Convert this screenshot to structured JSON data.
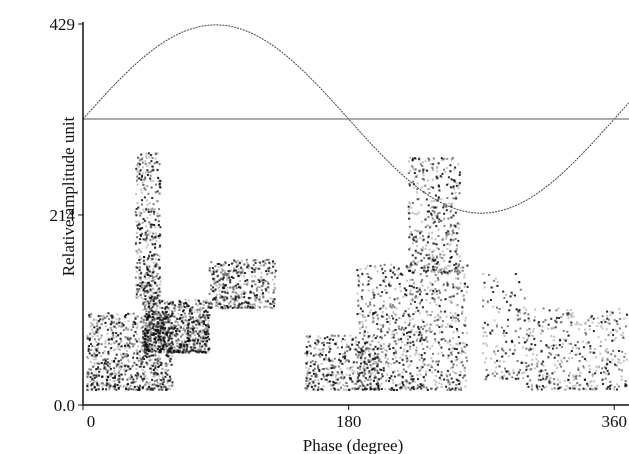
{
  "chart_data": {
    "type": "scatter",
    "title": "",
    "xlabel": "Phase (degree)",
    "ylabel": "Relative amplitude unit",
    "xlim": [
      0,
      370
    ],
    "ylim": [
      0,
      429
    ],
    "x_ticks": [
      {
        "value": 0,
        "label": "0"
      },
      {
        "value": 180,
        "label": "180"
      },
      {
        "value": 360,
        "label": "360"
      }
    ],
    "y_ticks": [
      {
        "value": 0,
        "label": "0.0"
      },
      {
        "value": 214,
        "label": "214"
      },
      {
        "value": 429,
        "label": "429"
      }
    ],
    "grid": false,
    "reference_sine": {
      "offset": 322,
      "amplitude": 106,
      "phase_range": [
        0,
        370
      ]
    },
    "threshold_line": 322,
    "pd_clusters": [
      {
        "phase_range": [
          2,
          60
        ],
        "amp_range": [
          18,
          105
        ],
        "density": "high"
      },
      {
        "phase_range": [
          35,
          52
        ],
        "amp_range": [
          120,
          285
        ],
        "density": "medium"
      },
      {
        "phase_range": [
          40,
          85
        ],
        "amp_range": [
          60,
          120
        ],
        "density": "high"
      },
      {
        "phase_range": [
          85,
          130
        ],
        "amp_range": [
          110,
          165
        ],
        "density": "medium"
      },
      {
        "phase_range": [
          150,
          200
        ],
        "amp_range": [
          18,
          80
        ],
        "density": "medium"
      },
      {
        "phase_range": [
          185,
          260
        ],
        "amp_range": [
          18,
          160
        ],
        "density": "high"
      },
      {
        "phase_range": [
          220,
          255
        ],
        "amp_range": [
          150,
          280
        ],
        "density": "medium"
      },
      {
        "phase_range": [
          270,
          300
        ],
        "amp_range": [
          30,
          150
        ],
        "density": "low"
      },
      {
        "phase_range": [
          300,
          368
        ],
        "amp_range": [
          18,
          110
        ],
        "density": "medium"
      }
    ],
    "colors": {
      "points": "#111111",
      "background": "#ffffff",
      "sine": "#444444",
      "threshold": "#555555",
      "axis": "#111111"
    }
  }
}
